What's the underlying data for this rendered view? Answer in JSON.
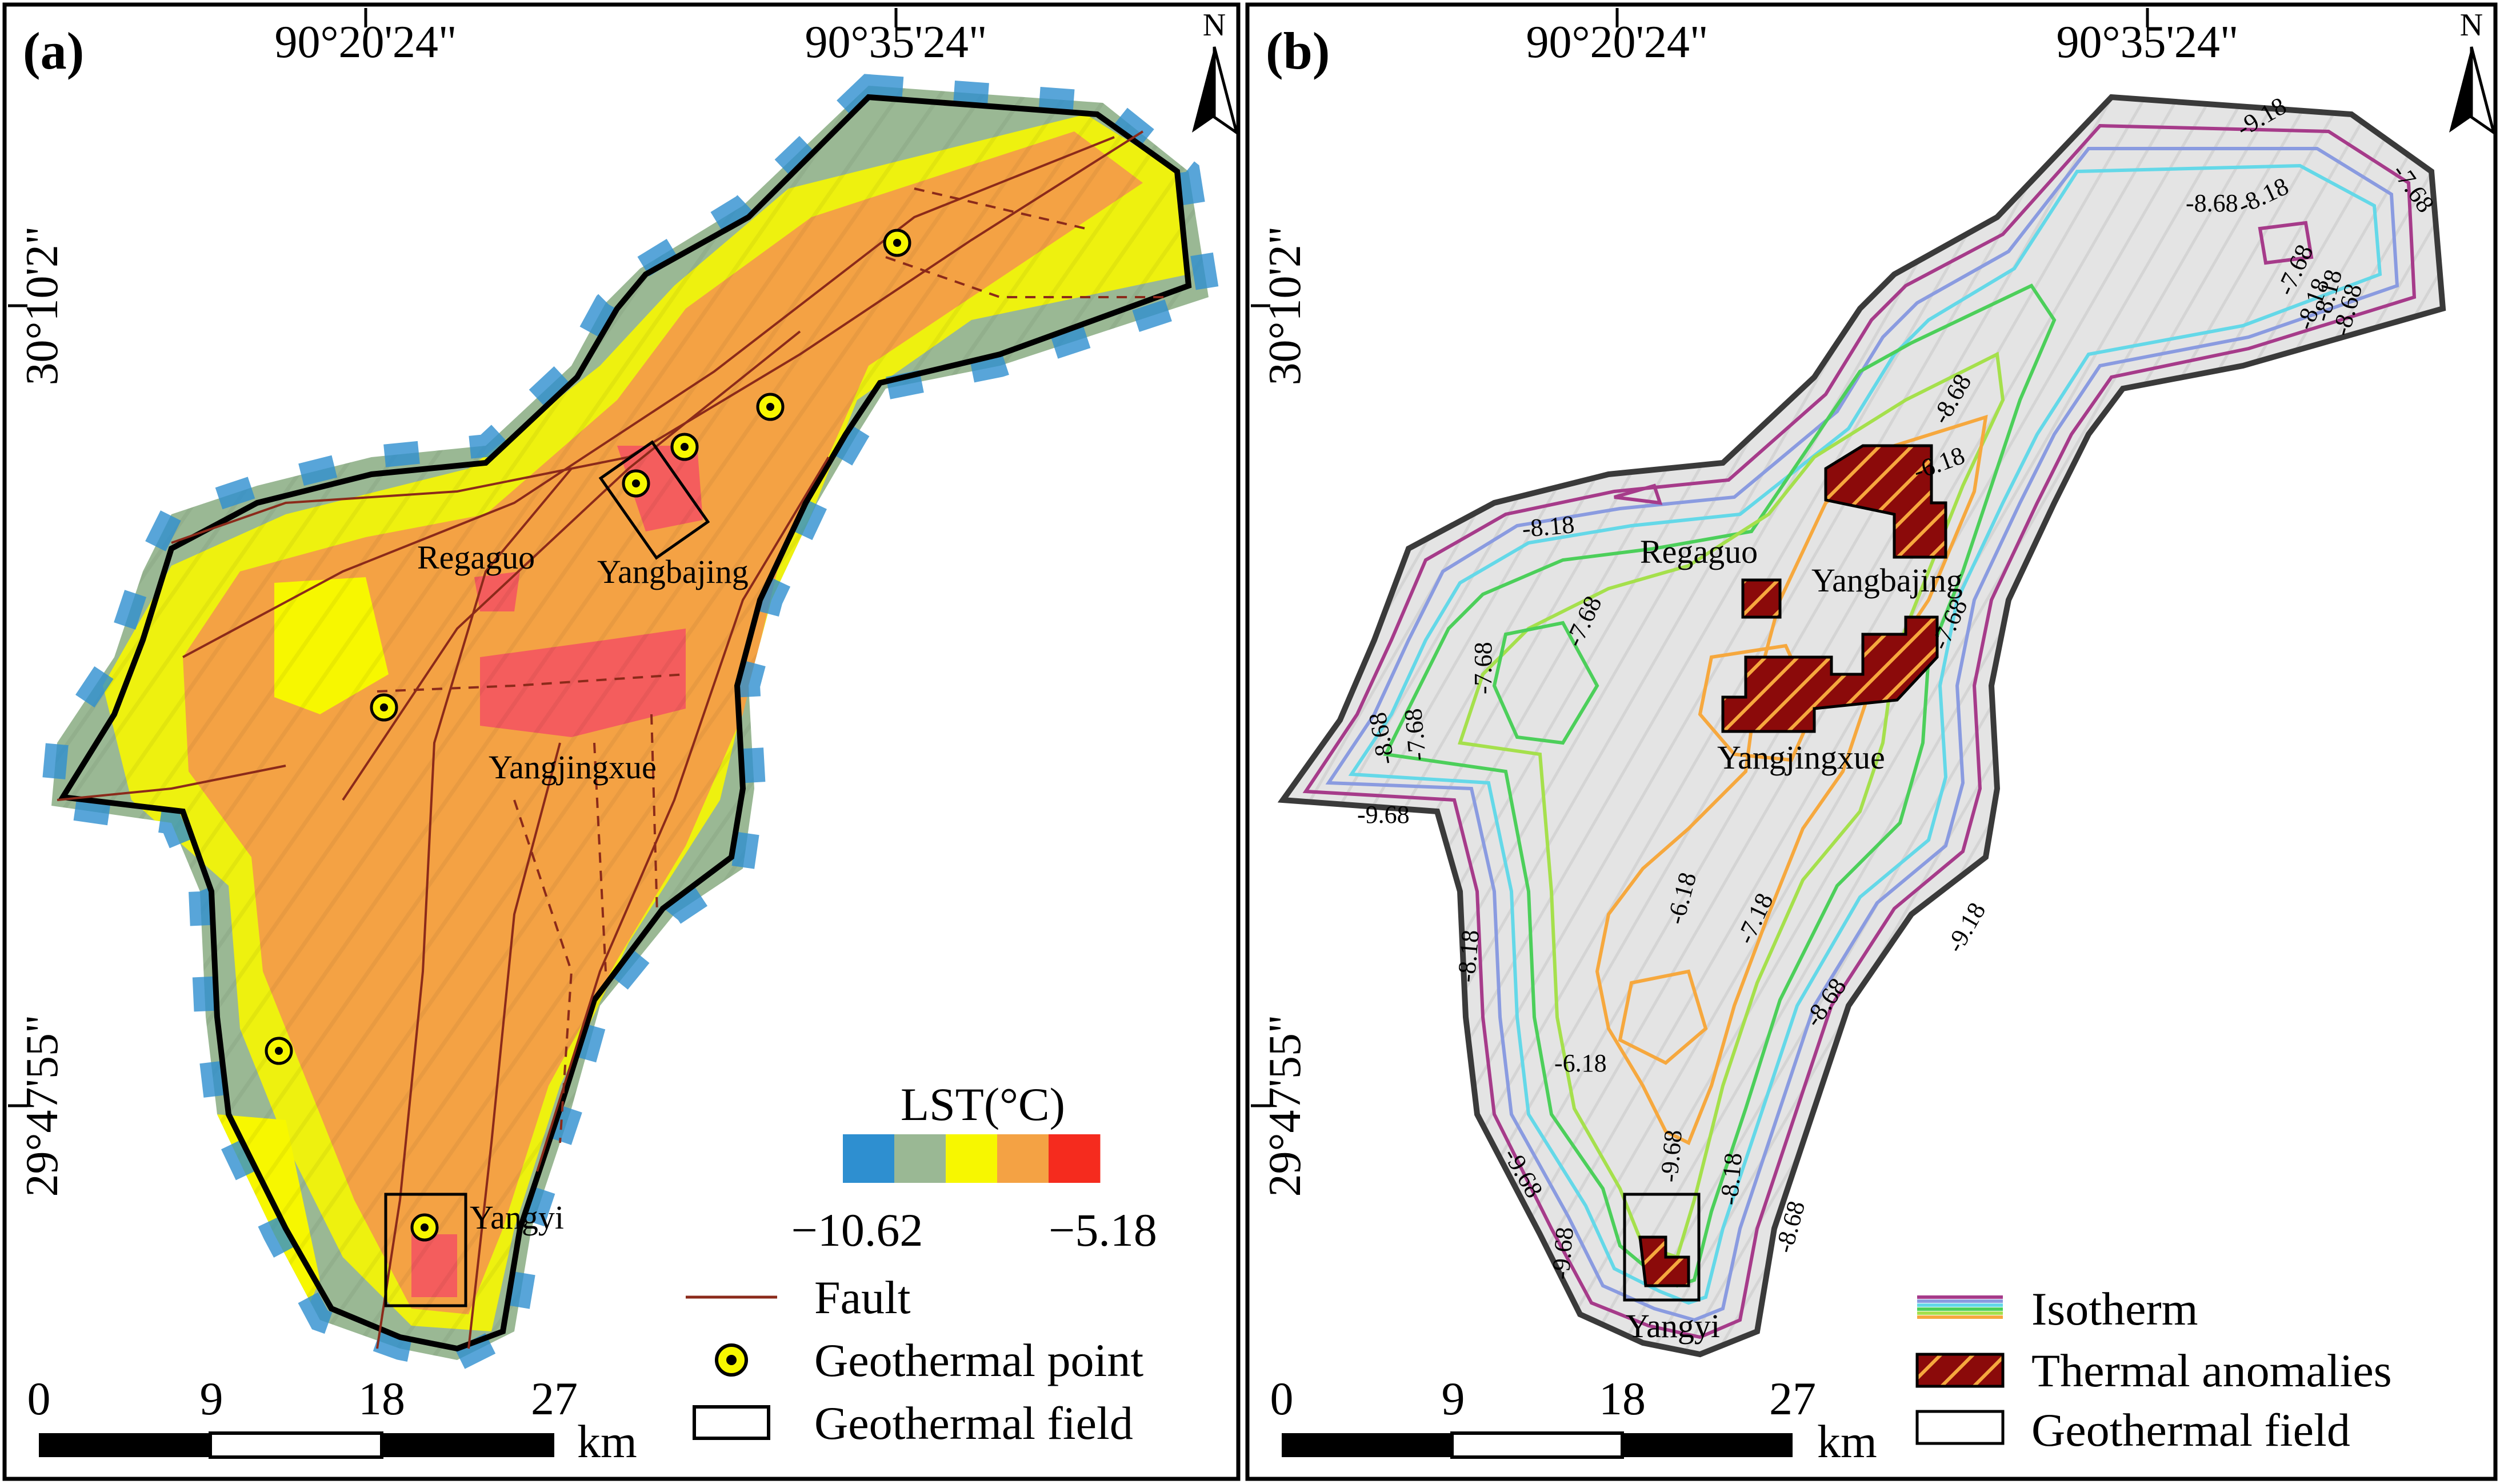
{
  "panel_a": {
    "label": "(a)",
    "lon_labels": [
      "90°20'24\"",
      "90°35'24\""
    ],
    "lat_labels": [
      "30°10'2\"",
      "29°47'55\""
    ],
    "north": "N",
    "places": {
      "regaguo": "Regaguo",
      "yangbajing": "Yangbajing",
      "yangjingxue": "Yangjingxue",
      "yangyi": "Yangyi"
    },
    "lst_legend": {
      "title": "LST(°C)",
      "min": "−10.62",
      "max": "−5.18",
      "colors": [
        "#2e8fd0",
        "#9ab894",
        "#f7f700",
        "#f4a244",
        "#f52b1e"
      ]
    },
    "legend": {
      "fault": "Fault",
      "geothermal_point": "Geothermal point",
      "geothermal_field": "Geothermal field"
    },
    "scale": {
      "ticks": [
        "0",
        "9",
        "18",
        "27"
      ],
      "unit": "km"
    }
  },
  "panel_b": {
    "label": "(b)",
    "lon_labels": [
      "90°20'24\"",
      "90°35'24\""
    ],
    "lat_labels": [
      "30°10'2\"",
      "29°47'55\""
    ],
    "north": "N",
    "places": {
      "regaguo": "Regaguo",
      "yangbajing": "Yangbajing",
      "yangjingxue": "Yangjingxue",
      "yangyi": "Yangyi"
    },
    "contour_labels": {
      "l1": "-9.18",
      "l2": "-8.68",
      "l3": "-8.18",
      "l4": "-7.68",
      "l5": "-8.18",
      "l6": "-8.68",
      "l7": "-7.68",
      "l8": "-8.18",
      "l9": "-8.68",
      "l10": "-6.18",
      "l11": "-7.68",
      "l12": "-7.68",
      "l13": "-7.68",
      "l14": "-8.68",
      "l15": "-7.68",
      "l16": "-9.68",
      "l17": "-6.18",
      "l18": "-7.18",
      "l19": "-8.18",
      "l20": "-9.18",
      "l21": "-8.68",
      "l22": "-6.18",
      "l23": "-9.68",
      "l24": "-8.18",
      "l25": "-9.68",
      "l26": "-9.68",
      "l27": "-8.68",
      "l28": "-7.18",
      "l29": "-7.68",
      "l30": "-6.18",
      "l31": "-8.68",
      "l32": "-9.18"
    },
    "legend": {
      "isotherm": "Isotherm",
      "thermal_anomalies": "Thermal anomalies",
      "geothermal_field": "Geothermal field"
    },
    "isotherm_colors": [
      "#a63b8a",
      "#8a9be0",
      "#64d8e8",
      "#4ccf5a",
      "#a5e04c",
      "#f6a83e"
    ],
    "scale": {
      "ticks": [
        "0",
        "9",
        "18",
        "27"
      ],
      "unit": "km"
    }
  }
}
